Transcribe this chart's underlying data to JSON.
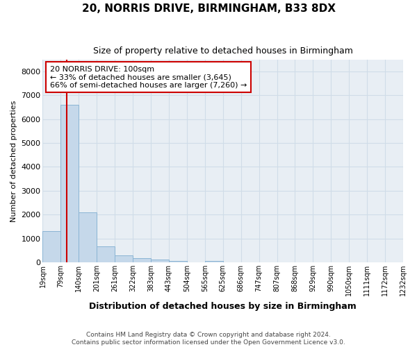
{
  "title": "20, NORRIS DRIVE, BIRMINGHAM, B33 8DX",
  "subtitle": "Size of property relative to detached houses in Birmingham",
  "xlabel": "Distribution of detached houses by size in Birmingham",
  "ylabel": "Number of detached properties",
  "footer1": "Contains HM Land Registry data © Crown copyright and database right 2024.",
  "footer2": "Contains public sector information licensed under the Open Government Licence v3.0.",
  "annotation_line1": "20 NORRIS DRIVE: 100sqm",
  "annotation_line2": "← 33% of detached houses are smaller (3,645)",
  "annotation_line3": "66% of semi-detached houses are larger (7,260) →",
  "bar_color": "#c5d8ea",
  "bar_edge_color": "#8ab4d4",
  "grid_color": "#d0dce8",
  "vline_color": "#cc0000",
  "annotation_box_edgecolor": "#cc0000",
  "background_color": "#e8eef4",
  "bin_labels": [
    "19sqm",
    "79sqm",
    "140sqm",
    "201sqm",
    "261sqm",
    "322sqm",
    "383sqm",
    "443sqm",
    "504sqm",
    "565sqm",
    "625sqm",
    "686sqm",
    "747sqm",
    "807sqm",
    "868sqm",
    "929sqm",
    "990sqm",
    "1050sqm",
    "1111sqm",
    "1172sqm",
    "1232sqm"
  ],
  "counts": [
    1300,
    6600,
    2080,
    660,
    300,
    160,
    100,
    60,
    0,
    60,
    0,
    0,
    0,
    0,
    0,
    0,
    0,
    0,
    0,
    0
  ],
  "vline_bar_index": 1,
  "ylim": [
    0,
    8500
  ],
  "yticks": [
    0,
    1000,
    2000,
    3000,
    4000,
    5000,
    6000,
    7000,
    8000
  ]
}
